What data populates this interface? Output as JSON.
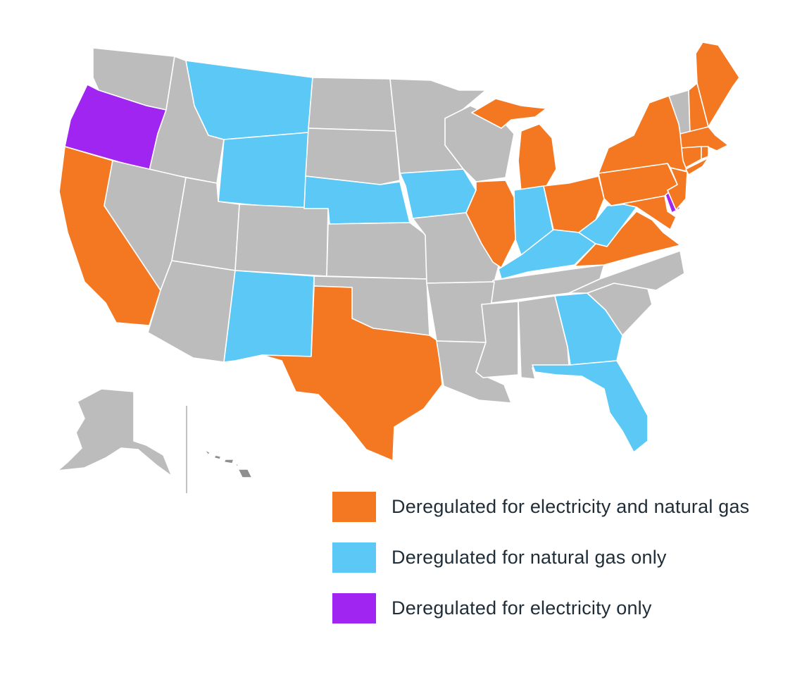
{
  "colors": {
    "both": "#f47721",
    "gas": "#5bc8f5",
    "electric": "#a025f0",
    "regulated": "#bcbcbc",
    "border": "#ffffff"
  },
  "legend": [
    {
      "key": "both",
      "label": "Deregulated for electricity and natural gas"
    },
    {
      "key": "gas",
      "label": "Deregulated for natural gas only"
    },
    {
      "key": "electric",
      "label": "Deregulated for electricity only"
    }
  ],
  "states": {
    "CA": "both",
    "TX": "both",
    "IL": "both",
    "MI": "both",
    "OH": "both",
    "PA": "both",
    "NY": "both",
    "NJ": "both",
    "MD": "both",
    "VA": "both",
    "ME": "both",
    "NH": "both",
    "MA": "both",
    "RI": "both",
    "CT": "both",
    "MT": "gas",
    "WY": "gas",
    "NE": "gas",
    "IA": "gas",
    "NM": "gas",
    "IN": "gas",
    "KY": "gas",
    "WV": "gas",
    "GA": "gas",
    "FL": "gas",
    "OR": "electric",
    "DE": "electric"
  }
}
